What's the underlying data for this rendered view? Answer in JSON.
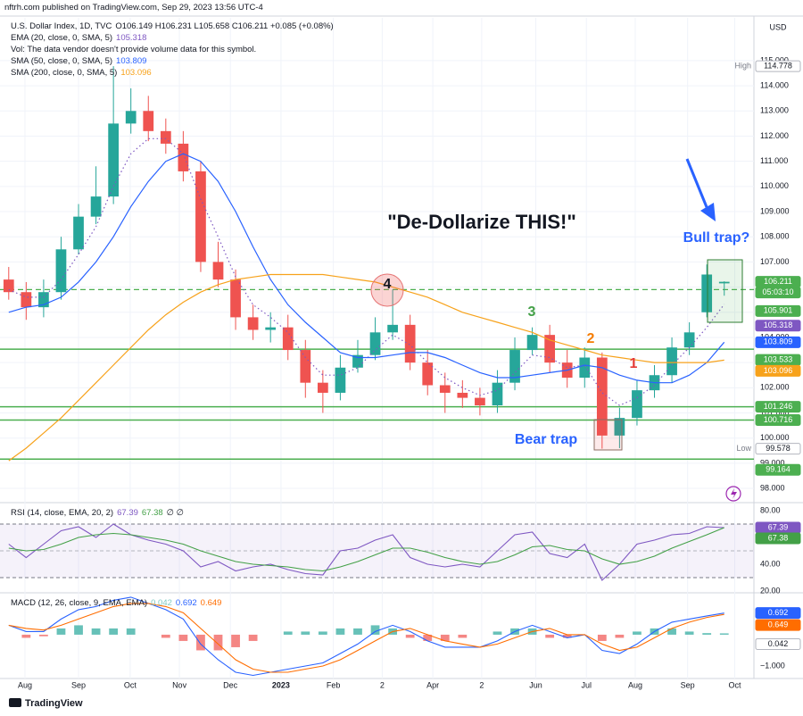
{
  "header": {
    "published": "nftrh.com published on TradingView.com, Sep 29, 2023 13:56 UTC-4",
    "brand": "TradingView"
  },
  "chart_data": [
    {
      "type": "candlestick",
      "title": "U.S. Dollar Index, 1D, TVC",
      "ohlc_text": "O106.149 H106.231 L105.658 C106.211 +0.085 (+0.08%)",
      "volume_note": "Vol: The data vendor doesn't provide volume data for this symbol.",
      "currency": "USD",
      "high_label": "High",
      "low_label": "Low",
      "countdown": "05:03:10",
      "xlim": [
        -0.5,
        42.7
      ],
      "xticks": [
        {
          "value": 0.93,
          "label": "Aug"
        },
        {
          "value": 4.0,
          "label": "Sep"
        },
        {
          "value": 6.96,
          "label": "Oct"
        },
        {
          "value": 9.78,
          "label": "Nov"
        },
        {
          "value": 12.7,
          "label": "Dec"
        },
        {
          "value": 15.6,
          "label": "2023"
        },
        {
          "value": 18.6,
          "label": "Feb"
        },
        {
          "value": 21.4,
          "label": "2"
        },
        {
          "value": 24.3,
          "label": "Apr"
        },
        {
          "value": 27.1,
          "label": "2"
        },
        {
          "value": 30.2,
          "label": "Jun"
        },
        {
          "value": 33.1,
          "label": "Jul"
        },
        {
          "value": 35.9,
          "label": "Aug"
        },
        {
          "value": 38.9,
          "label": "Sep"
        },
        {
          "value": 41.6,
          "label": "Oct"
        }
      ],
      "ylim": [
        97.47,
        116.7
      ],
      "yticks": [
        {
          "value": 98,
          "label": "98.000"
        },
        {
          "value": 99,
          "label": "99.000"
        },
        {
          "value": 100,
          "label": "100.000"
        },
        {
          "value": 101,
          "label": "101.000"
        },
        {
          "value": 102,
          "label": "102.000"
        },
        {
          "value": 103,
          "label": "103.000"
        },
        {
          "value": 104,
          "label": "104.000"
        },
        {
          "value": 105,
          "label": "105.000"
        },
        {
          "value": 106,
          "label": "106.000"
        },
        {
          "value": 107,
          "label": "107.000"
        },
        {
          "value": 108,
          "label": "108.000"
        },
        {
          "value": 109,
          "label": "109.000"
        },
        {
          "value": 110,
          "label": "110.000"
        },
        {
          "value": 111,
          "label": "111.000"
        },
        {
          "value": 112,
          "label": "112.000"
        },
        {
          "value": 113,
          "label": "113.000"
        },
        {
          "value": 114,
          "label": "114.000"
        },
        {
          "value": 115,
          "label": "115.000"
        }
      ],
      "grid": true,
      "up_color": "#26a69a",
      "down_color": "#ef5350",
      "open": [
        106.3,
        105.8,
        105.2,
        105.8,
        107.5,
        108.8,
        109.6,
        112.5,
        113.0,
        112.2,
        111.7,
        110.6,
        107.0,
        106.3,
        104.8,
        104.3,
        104.4,
        103.5,
        102.2,
        101.8,
        102.8,
        103.3,
        104.2,
        104.5,
        103.0,
        102.1,
        101.8,
        101.6,
        101.3,
        102.2,
        103.5,
        104.1,
        103.0,
        102.4,
        103.2,
        100.1,
        100.8,
        101.9,
        102.5,
        103.6,
        105.0,
        106.149
      ],
      "high": [
        106.8,
        106.2,
        106.3,
        108.0,
        109.3,
        110.8,
        114.778,
        113.9,
        113.6,
        112.7,
        112.2,
        111.0,
        107.8,
        106.7,
        105.3,
        105.0,
        104.9,
        103.9,
        102.7,
        103.3,
        103.9,
        104.8,
        105.9,
        104.9,
        103.5,
        102.6,
        102.3,
        102.0,
        102.7,
        104.0,
        104.4,
        104.5,
        103.5,
        103.6,
        103.4,
        101.2,
        102.3,
        102.9,
        104.0,
        104.6,
        106.9,
        106.231
      ],
      "low": [
        105.5,
        104.7,
        104.8,
        105.5,
        107.3,
        108.5,
        109.3,
        112.1,
        111.8,
        111.3,
        110.2,
        106.6,
        106.0,
        104.3,
        103.9,
        103.8,
        103.1,
        101.6,
        101.0,
        101.5,
        102.6,
        103.1,
        103.9,
        102.7,
        101.7,
        101.0,
        101.2,
        100.9,
        101.0,
        101.9,
        103.3,
        102.6,
        102.0,
        102.0,
        99.578,
        99.6,
        100.5,
        101.6,
        102.2,
        103.3,
        104.8,
        105.658
      ],
      "close": [
        105.8,
        105.2,
        105.8,
        107.5,
        108.8,
        109.6,
        112.5,
        113.0,
        112.2,
        111.7,
        110.6,
        107.0,
        106.3,
        104.8,
        104.3,
        104.4,
        103.5,
        102.2,
        101.8,
        102.8,
        103.3,
        104.2,
        104.5,
        103.0,
        102.1,
        101.8,
        101.6,
        101.3,
        102.2,
        103.5,
        104.1,
        103.0,
        102.4,
        103.2,
        100.1,
        100.8,
        101.9,
        102.5,
        103.6,
        104.2,
        106.5,
        106.211
      ],
      "series": [
        {
          "name": "EMA (20, close, 0, SMA, 5)",
          "color": "#7e57c2",
          "dotted": true,
          "values": [
            105.9,
            105.6,
            105.6,
            106.3,
            107.3,
            108.4,
            110.0,
            111.3,
            111.9,
            111.9,
            111.3,
            109.5,
            108.0,
            106.4,
            105.3,
            104.8,
            104.2,
            103.2,
            102.5,
            102.5,
            102.8,
            103.5,
            104.1,
            103.7,
            103.0,
            102.4,
            102.0,
            101.7,
            101.9,
            102.6,
            103.3,
            103.2,
            102.8,
            102.9,
            101.8,
            101.3,
            101.6,
            102.1,
            102.9,
            103.6,
            104.4,
            105.318
          ]
        },
        {
          "name": "SMA (50, close, 0, SMA, 5)",
          "color": "#2962ff",
          "dotted": false,
          "values": [
            105.0,
            105.2,
            105.3,
            105.6,
            106.2,
            107.0,
            108.0,
            109.2,
            110.2,
            111.0,
            111.3,
            111.0,
            110.2,
            109.0,
            107.6,
            106.3,
            105.3,
            104.6,
            104.0,
            103.4,
            103.2,
            103.2,
            103.3,
            103.4,
            103.4,
            103.2,
            102.9,
            102.6,
            102.4,
            102.4,
            102.5,
            102.6,
            102.7,
            102.9,
            102.8,
            102.5,
            102.3,
            102.2,
            102.2,
            102.5,
            103.0,
            103.809
          ]
        },
        {
          "name": "SMA (200, close, 0, SMA, 5)",
          "color": "#f7a21b",
          "dotted": false,
          "values": [
            99.1,
            99.6,
            100.2,
            100.8,
            101.5,
            102.2,
            102.9,
            103.6,
            104.3,
            104.9,
            105.4,
            105.8,
            106.1,
            106.3,
            106.4,
            106.5,
            106.5,
            106.5,
            106.5,
            106.4,
            106.3,
            106.2,
            106.0,
            105.8,
            105.6,
            105.3,
            105.0,
            104.8,
            104.6,
            104.4,
            104.2,
            103.9,
            103.7,
            103.5,
            103.3,
            103.2,
            103.1,
            103.0,
            103.0,
            103.0,
            103.0,
            103.096
          ]
        }
      ],
      "levels": [
        103.533,
        101.246,
        100.716,
        99.164
      ],
      "dashed_level": 105.901,
      "level_color": "#4caf50",
      "annotations": {
        "headline": "\"De-Dollarize THIS!\"",
        "bull_trap": "Bull trap?",
        "bear_trap": "Bear trap",
        "wave_labels": [
          "4",
          "3",
          "2",
          "1"
        ]
      }
    },
    {
      "type": "line",
      "title": "RSI (14, close, EMA, 20, 2)",
      "extra_text": "∅ ∅",
      "ylim": [
        18.7,
        84.7
      ],
      "yticks": [
        {
          "value": 20,
          "label": "20.00"
        },
        {
          "value": 40,
          "label": "40.00"
        },
        {
          "value": 60,
          "label": "60.00"
        },
        {
          "value": 80,
          "label": "80.00"
        }
      ],
      "band": [
        30,
        70
      ],
      "midline": 50,
      "series": [
        {
          "color": "#7e57c2",
          "values": [
            55,
            45,
            55,
            65,
            68,
            60,
            70,
            62,
            58,
            55,
            50,
            38,
            42,
            35,
            38,
            40,
            36,
            33,
            32,
            50,
            52,
            58,
            62,
            45,
            40,
            38,
            40,
            38,
            50,
            62,
            64,
            48,
            45,
            55,
            28,
            40,
            55,
            58,
            62,
            63,
            68,
            67.39
          ]
        },
        {
          "color": "#43a047",
          "values": [
            52,
            50,
            51,
            55,
            60,
            62,
            63,
            62,
            60,
            58,
            55,
            50,
            46,
            42,
            40,
            39,
            38,
            36,
            35,
            38,
            42,
            47,
            52,
            52,
            49,
            45,
            42,
            40,
            42,
            47,
            53,
            54,
            51,
            50,
            44,
            40,
            42,
            46,
            52,
            57,
            62,
            67.38
          ]
        }
      ]
    },
    {
      "type": "macd",
      "title": "MACD (12, 26, close, 9, EMA, EMA)",
      "ylim": [
        -1.4,
        1.31
      ],
      "yticks": [
        {
          "value": -1,
          "label": "−1.000"
        }
      ],
      "histogram": {
        "positive_color": "#26a69a",
        "negative_color": "#ef5350",
        "values": [
          0,
          -0.1,
          -0.05,
          0.2,
          0.3,
          0.2,
          0.2,
          0.2,
          0,
          -0.1,
          -0.2,
          -0.5,
          -0.5,
          -0.4,
          -0.2,
          0,
          0.1,
          0.1,
          0.1,
          0.2,
          0.2,
          0.3,
          0.2,
          -0.1,
          -0.2,
          -0.2,
          -0.1,
          0,
          0.1,
          0.2,
          0.2,
          -0.1,
          -0.1,
          0,
          -0.2,
          -0.1,
          0.1,
          0.2,
          0.2,
          0.1,
          0.05,
          0.042
        ]
      },
      "series": [
        {
          "color": "#2962ff",
          "values": [
            0.3,
            0.1,
            0.1,
            0.5,
            0.8,
            0.9,
            1.1,
            1.2,
            1.0,
            0.8,
            0.5,
            -0.3,
            -0.8,
            -1.2,
            -1.3,
            -1.2,
            -1.1,
            -1.0,
            -0.9,
            -0.6,
            -0.3,
            0.1,
            0.3,
            0.1,
            -0.2,
            -0.4,
            -0.4,
            -0.4,
            -0.2,
            0.1,
            0.3,
            0.1,
            -0.1,
            0.0,
            -0.5,
            -0.6,
            -0.3,
            0.1,
            0.4,
            0.5,
            0.6,
            0.692
          ]
        },
        {
          "color": "#ff6d00",
          "values": [
            0.3,
            0.2,
            0.15,
            0.3,
            0.5,
            0.7,
            0.9,
            1.0,
            1.0,
            0.9,
            0.7,
            0.2,
            -0.3,
            -0.8,
            -1.1,
            -1.2,
            -1.2,
            -1.1,
            -1.0,
            -0.8,
            -0.5,
            -0.2,
            0.1,
            0.2,
            0.0,
            -0.2,
            -0.3,
            -0.4,
            -0.3,
            -0.1,
            0.1,
            0.2,
            0.0,
            0.0,
            -0.3,
            -0.5,
            -0.4,
            -0.1,
            0.2,
            0.4,
            0.55,
            0.649
          ]
        }
      ]
    }
  ]
}
